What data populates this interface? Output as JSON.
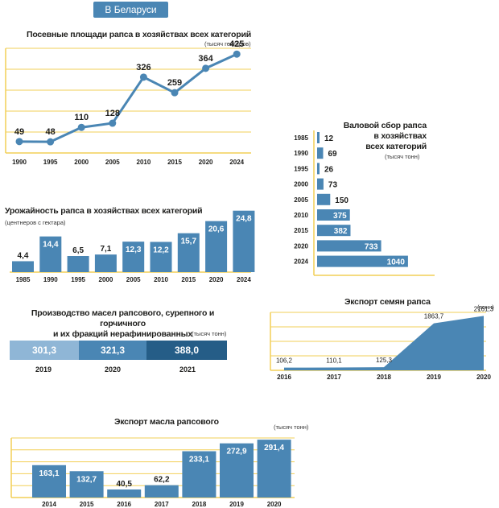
{
  "header": {
    "badge": "В Беларуси"
  },
  "colors": {
    "primary": "#4a86b4",
    "dark": "#255d87",
    "light": "#8fb6d6",
    "grid": "#f2cf57"
  },
  "chart_data": [
    {
      "id": "sown-area",
      "type": "line",
      "title": "Посевные площади рапса в хозяйствах всех категорий",
      "unit": "(тысяч гектаров)",
      "categories": [
        "1990",
        "1995",
        "2000",
        "2005",
        "2010",
        "2015",
        "2020",
        "2024"
      ],
      "values": [
        49,
        48,
        110,
        128,
        326,
        259,
        364,
        425
      ],
      "labels": [
        "49",
        "48",
        "110",
        "128",
        "326",
        "259",
        "364",
        "425"
      ],
      "ylim": [
        0,
        450
      ]
    },
    {
      "id": "gross-harvest",
      "type": "bar",
      "orientation": "horizontal",
      "title": "Валовой сбор рапса в хозяйствах всех категорий",
      "title_lines": [
        "Валовой сбор рапса",
        "в хозяйствах",
        "всех категорий"
      ],
      "unit": "(тысяч тонн)",
      "categories": [
        "1985",
        "1990",
        "1995",
        "2000",
        "2005",
        "2010",
        "2015",
        "2020",
        "2024"
      ],
      "values": [
        12,
        69,
        26,
        73,
        150,
        375,
        382,
        733,
        1040
      ],
      "labels": [
        "12",
        "69",
        "26",
        "73",
        "150",
        "375",
        "382",
        "733",
        "1040"
      ],
      "xlim": [
        0,
        1050
      ]
    },
    {
      "id": "yield",
      "type": "bar",
      "title": "Урожайность рапса в хозяйствах всех категорий",
      "unit": "(центнеров с гектара)",
      "categories": [
        "1985",
        "1990",
        "1995",
        "2000",
        "2005",
        "2010",
        "2015",
        "2020",
        "2024"
      ],
      "values": [
        4.4,
        14.4,
        6.5,
        7.1,
        12.3,
        12.2,
        15.7,
        20.6,
        24.8
      ],
      "labels": [
        "4,4",
        "14,4",
        "6,5",
        "7,1",
        "12,3",
        "12,2",
        "15,7",
        "20,6",
        "24,8"
      ],
      "ylim": [
        0,
        26
      ]
    },
    {
      "id": "oil-production",
      "type": "bar",
      "orientation": "stacked-horizontal",
      "title": "Производство масел рапсового, сурепного и горчичного и их фракций нерафинированных",
      "title_lines": [
        "Производство масел рапсового, сурепного и горчичного",
        "и их фракций нерафинированных"
      ],
      "unit": "(тысяч тонн)",
      "categories": [
        "2019",
        "2020",
        "2021"
      ],
      "values": [
        301.3,
        321.3,
        388.0
      ],
      "labels": [
        "301,3",
        "321,3",
        "388,0"
      ]
    },
    {
      "id": "seed-export",
      "type": "area",
      "title": "Экспорт семян рапса",
      "unit": "(тонн)",
      "categories": [
        "2016",
        "2017",
        "2018",
        "2019",
        "2020"
      ],
      "values": [
        106.2,
        110.1,
        125.3,
        1863.7,
        2161.3
      ],
      "labels": [
        "106,2",
        "110,1",
        "125,3",
        "1863,7",
        "2161,3"
      ],
      "ylim": [
        0,
        2300
      ]
    },
    {
      "id": "oil-export",
      "type": "bar",
      "title": "Экспорт масла рапсового",
      "unit": "(тысяч тонн)",
      "categories": [
        "2014",
        "2015",
        "2016",
        "2017",
        "2018",
        "2019",
        "2020"
      ],
      "values": [
        163.1,
        132.7,
        40.5,
        62.2,
        233.1,
        272.9,
        291.4
      ],
      "labels": [
        "163,1",
        "132,7",
        "40,5",
        "62,2",
        "233,1",
        "272,9",
        "291,4"
      ],
      "ylim": [
        0,
        300
      ]
    }
  ]
}
